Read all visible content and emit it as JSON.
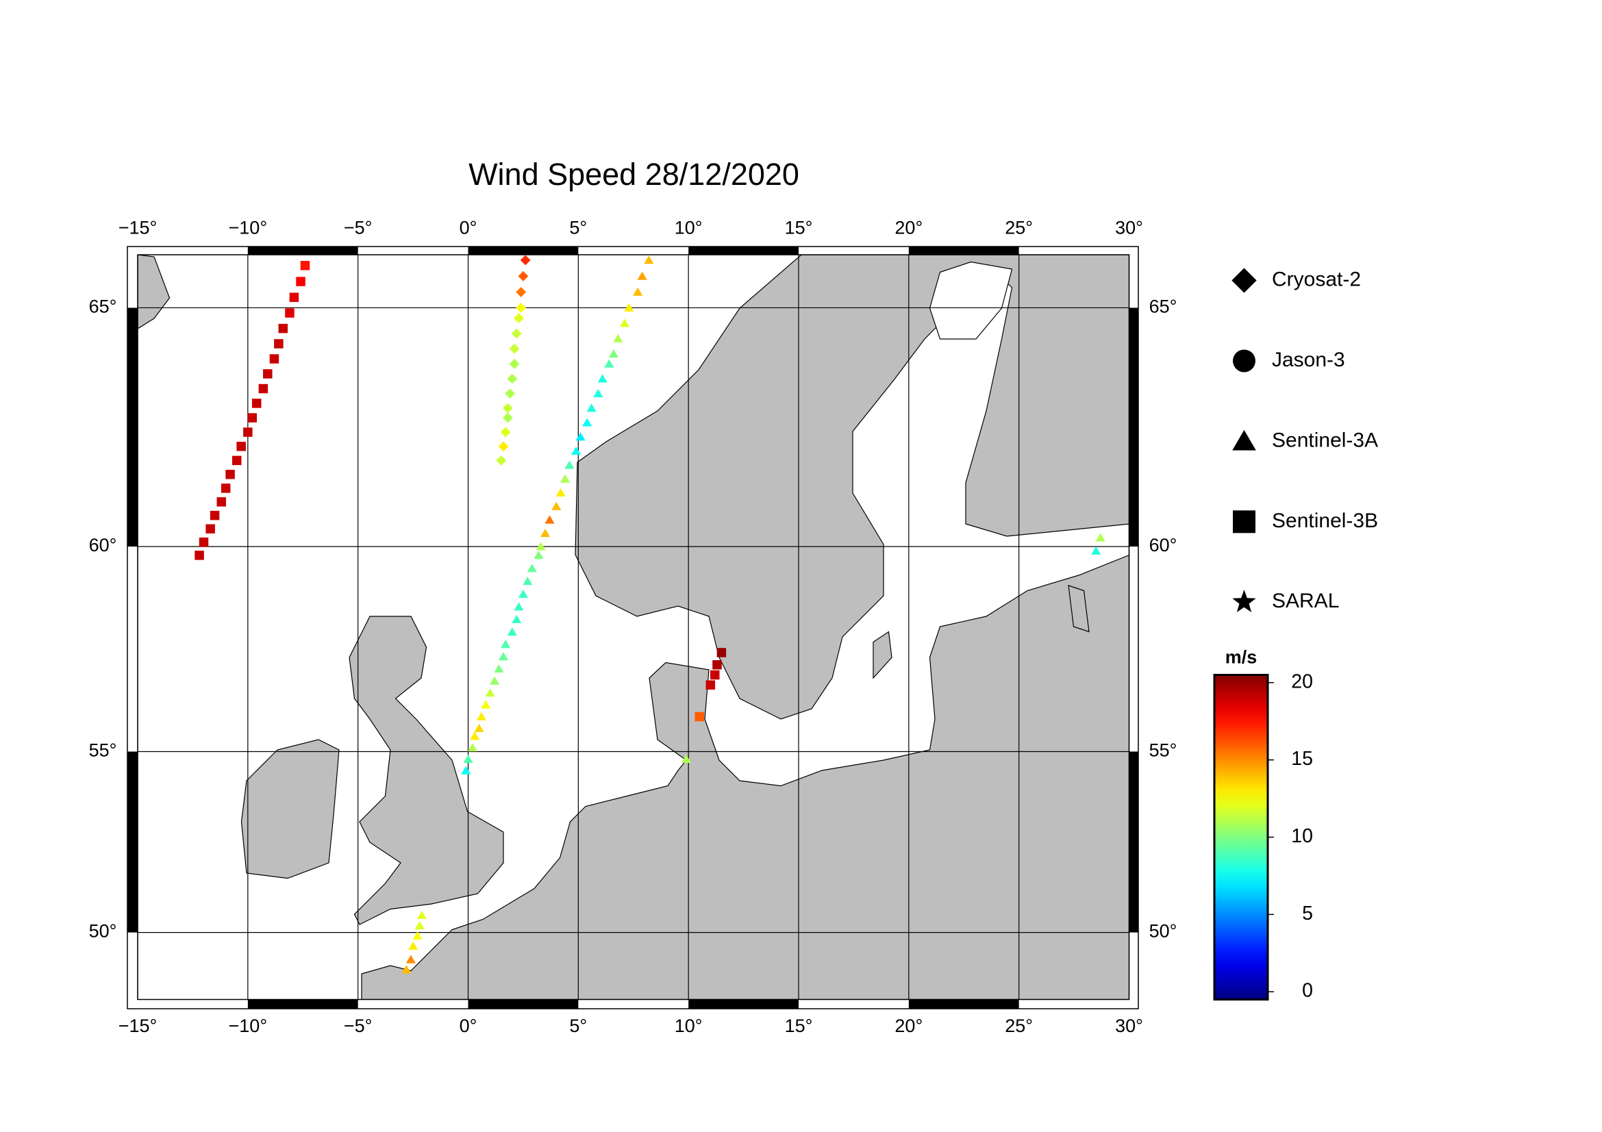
{
  "chart_data": {
    "type": "scatter",
    "title": "Wind Speed 28/12/2020",
    "projection": "mercator",
    "xlim": [
      -15,
      30
    ],
    "ylim": [
      48,
      66
    ],
    "xticks": [
      {
        "value": -15,
        "label": "−15°"
      },
      {
        "value": -10,
        "label": "−10°"
      },
      {
        "value": -5,
        "label": "−5°"
      },
      {
        "value": 0,
        "label": "0°"
      },
      {
        "value": 5,
        "label": "5°"
      },
      {
        "value": 10,
        "label": "10°"
      },
      {
        "value": 15,
        "label": "15°"
      },
      {
        "value": 20,
        "label": "20°"
      },
      {
        "value": 25,
        "label": "25°"
      },
      {
        "value": 30,
        "label": "30°"
      }
    ],
    "yticks": [
      {
        "value": 50,
        "label": "50°"
      },
      {
        "value": 55,
        "label": "55°"
      },
      {
        "value": 60,
        "label": "60°"
      },
      {
        "value": 65,
        "label": "65°"
      }
    ],
    "grid": true,
    "colormap": "jet",
    "colorbar_label": "m/s",
    "clim": [
      -0.5,
      20.5
    ],
    "colorbar_ticks": [
      0,
      5,
      10,
      15,
      20
    ],
    "series": [
      {
        "name": "Cryosat-2",
        "marker": "diamond",
        "x": [
          2.6,
          2.5,
          2.4,
          2.4,
          2.3,
          2.2,
          2.1,
          2.1,
          2.0,
          1.9,
          1.8,
          1.8,
          1.7,
          1.6,
          1.5
        ],
        "y": [
          65.9,
          65.6,
          65.3,
          65.0,
          64.8,
          64.5,
          64.2,
          63.9,
          63.6,
          63.3,
          63.0,
          62.8,
          62.5,
          62.2,
          61.9
        ],
        "values": [
          17,
          16,
          15.5,
          12.5,
          12,
          11.5,
          11.5,
          11,
          11,
          11,
          11.5,
          11,
          12,
          13,
          11.5
        ]
      },
      {
        "name": "Jason-3",
        "marker": "circle",
        "x": [],
        "y": [],
        "values": []
      },
      {
        "name": "Sentinel-3A",
        "marker": "triangle",
        "x": [
          8.2,
          7.9,
          7.7,
          7.3,
          7.1,
          6.8,
          6.6,
          6.4,
          6.1,
          5.9,
          5.6,
          5.4,
          5.1,
          4.9,
          4.6,
          4.4,
          4.2,
          4.0,
          3.7,
          3.5,
          3.3,
          3.2,
          2.9,
          2.7,
          2.5,
          2.3,
          2.2,
          2.0,
          1.7,
          1.6,
          1.4,
          1.2,
          1.0,
          0.8,
          0.6,
          0.5,
          0.3,
          0.2,
          0.0,
          -0.1,
          -2.1,
          -2.2,
          -2.3,
          -2.5,
          -2.6,
          -2.8,
          28.7,
          28.5,
          9.9
        ],
        "y": [
          65.9,
          65.6,
          65.3,
          65.0,
          64.7,
          64.4,
          64.1,
          63.9,
          63.6,
          63.3,
          63.0,
          62.7,
          62.4,
          62.1,
          61.8,
          61.5,
          61.2,
          60.9,
          60.6,
          60.3,
          60.0,
          59.8,
          59.5,
          59.2,
          58.9,
          58.6,
          58.3,
          58.0,
          57.7,
          57.4,
          57.1,
          56.8,
          56.5,
          56.2,
          55.9,
          55.6,
          55.4,
          55.1,
          54.8,
          54.5,
          50.5,
          50.2,
          49.9,
          49.6,
          49.2,
          48.9,
          60.2,
          59.9,
          54.8
        ],
        "values": [
          14,
          14.5,
          14,
          13,
          12,
          11,
          10,
          9,
          8,
          8,
          8,
          7.5,
          7,
          7.5,
          9,
          11,
          13,
          14,
          15.5,
          14,
          11,
          10,
          9.5,
          9,
          8.5,
          8.5,
          8.5,
          8.5,
          9,
          9.5,
          10,
          10.5,
          11.5,
          12.5,
          13,
          13.5,
          13,
          11,
          9,
          7.5,
          12,
          12,
          12.5,
          13,
          15,
          14,
          11,
          8,
          11
        ]
      },
      {
        "name": "Sentinel-3B",
        "marker": "square",
        "x": [
          -7.4,
          -7.6,
          -7.9,
          -8.1,
          -8.4,
          -8.6,
          -8.8,
          -9.1,
          -9.3,
          -9.6,
          -9.8,
          -10.0,
          -10.3,
          -10.5,
          -10.8,
          -11.0,
          -11.2,
          -11.5,
          -11.7,
          -12.0,
          -12.2,
          11.5,
          11.3,
          11.2,
          11.0,
          10.5
        ],
        "y": [
          65.8,
          65.5,
          65.2,
          64.9,
          64.6,
          64.3,
          64.0,
          63.7,
          63.4,
          63.1,
          62.8,
          62.5,
          62.2,
          61.9,
          61.6,
          61.3,
          61.0,
          60.7,
          60.4,
          60.1,
          59.8,
          57.5,
          57.2,
          56.95,
          56.7,
          55.9
        ],
        "values": [
          17.5,
          18,
          18.5,
          18.5,
          19,
          19,
          19,
          19,
          19,
          19,
          19,
          19,
          19,
          19,
          19,
          19,
          19,
          19,
          19,
          19,
          19,
          20,
          19.5,
          19,
          19,
          16
        ]
      },
      {
        "name": "SARAL",
        "marker": "star",
        "x": [],
        "y": [],
        "values": []
      }
    ]
  }
}
